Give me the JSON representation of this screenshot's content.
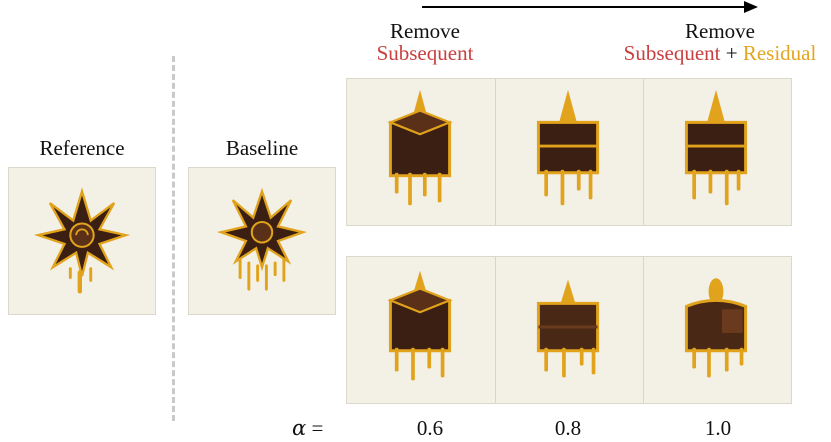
{
  "labels": {
    "reference": "Reference",
    "baseline": "Baseline",
    "remove_left_line1": "Remove",
    "remove_left_line2": "Subsequent",
    "remove_right_line1": "Remove",
    "remove_right_subsequent": "Subsequent",
    "remove_right_plus": " + ",
    "remove_right_residual": "Residual",
    "alpha_symbol": "α",
    "alpha_equals": " =",
    "alpha_values": [
      "0.6",
      "0.8",
      "1.0"
    ]
  },
  "colors": {
    "subsequent": "#c8403f",
    "residual": "#e3a51f",
    "tile_bg": "#f3f0e6",
    "chocolate": "#3a1f12",
    "gold": "#e1a21c"
  },
  "icons": {
    "reference": "chocolate-flower",
    "baseline": "chocolate-flower-drips",
    "grid": [
      "chocolate-cube-spire",
      "chocolate-cube-spire",
      "chocolate-cube-spire",
      "chocolate-cube-spire",
      "chocolate-cake-slice",
      "chocolate-cake-slice"
    ]
  }
}
